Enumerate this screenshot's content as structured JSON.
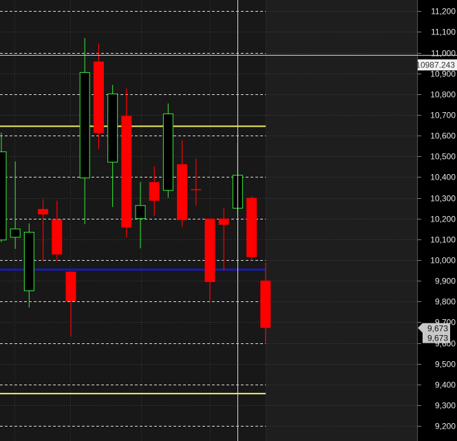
{
  "chart_data": {
    "type": "candlestick",
    "title": "",
    "xlabel": "",
    "ylabel": "",
    "ylim": [
      9150,
      11260
    ],
    "grid": true,
    "y_ticks": [
      "11,200",
      "11,100",
      "11,000",
      "10,900",
      "10,800",
      "10,700",
      "10,600",
      "10,500",
      "10,400",
      "10,300",
      "10,200",
      "10,100",
      "10,000",
      "9,900",
      "9,800",
      "9,700",
      "9,600",
      "9,500",
      "9,400",
      "9,300",
      "9,200"
    ],
    "y_tick_values": [
      11200,
      11100,
      11000,
      10900,
      10800,
      10700,
      10600,
      10500,
      10400,
      10300,
      10200,
      10100,
      10000,
      9900,
      9800,
      9700,
      9600,
      9500,
      9400,
      9300,
      9200
    ],
    "candles": [
      {
        "open": 10097,
        "high": 10615,
        "low": 10087,
        "close": 10522
      },
      {
        "open": 10110,
        "high": 10476,
        "low": 10054,
        "close": 10150
      },
      {
        "open": 9852,
        "high": 10177,
        "low": 9771,
        "close": 10134
      },
      {
        "open": 10246,
        "high": 10293,
        "low": 9994,
        "close": 10220
      },
      {
        "open": 10197,
        "high": 10286,
        "low": 9994,
        "close": 10027
      },
      {
        "open": 9944,
        "high": 9944,
        "low": 9632,
        "close": 9801
      },
      {
        "open": 10396,
        "high": 11070,
        "low": 10173,
        "close": 10904
      },
      {
        "open": 10957,
        "high": 11044,
        "low": 10536,
        "close": 10612
      },
      {
        "open": 10472,
        "high": 10844,
        "low": 10256,
        "close": 10801
      },
      {
        "open": 10695,
        "high": 10828,
        "low": 10110,
        "close": 10157
      },
      {
        "open": 10200,
        "high": 10376,
        "low": 10057,
        "close": 10263
      },
      {
        "open": 10376,
        "high": 10452,
        "low": 10213,
        "close": 10286
      },
      {
        "open": 10336,
        "high": 10755,
        "low": 10300,
        "close": 10705
      },
      {
        "open": 10462,
        "high": 10579,
        "low": 10160,
        "close": 10193
      },
      {
        "open": 10342,
        "high": 10489,
        "low": 10263,
        "close": 10339
      },
      {
        "open": 10200,
        "high": 10200,
        "low": 9805,
        "close": 9894
      },
      {
        "open": 10200,
        "high": 10253,
        "low": 9951,
        "close": 10170
      },
      {
        "open": 10250,
        "high": 10565,
        "low": 10220,
        "close": 10409
      },
      {
        "open": 10300,
        "high": 10306,
        "low": 9997,
        "close": 10014
      },
      {
        "open": 9901,
        "high": 9987,
        "low": 9602,
        "close": 9673
      }
    ],
    "horizontal_levels": [
      {
        "value": 10645,
        "color": "#f0f060"
      },
      {
        "value": 9356,
        "color": "#f0f060"
      },
      {
        "value": 9954,
        "color": "#1a1ab4"
      }
    ],
    "crosshair": {
      "price_label": "10987.243",
      "value": 10987.243
    },
    "last_price_labels": [
      "9,673",
      "9,673"
    ],
    "colors": {
      "up": "#33cc33",
      "down": "#ff0000",
      "background": "#171717",
      "axis_background": "#000000"
    }
  }
}
